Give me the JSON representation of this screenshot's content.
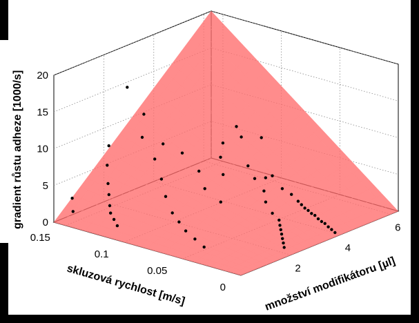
{
  "chart_data": {
    "type": "scatter",
    "subtype": "3d-scatter-with-fitted-plane",
    "title": "",
    "xlabel": "skluzová rychlost [m/s]",
    "ylabel": "množství modifikátoru  [µl]",
    "zlabel": "gradient růstu adheze [1000/s]",
    "x_ticks": [
      "0",
      "0.05",
      "0.1",
      "0.15"
    ],
    "y_ticks": [
      "2",
      "4",
      "6"
    ],
    "z_ticks": [
      "0",
      "5",
      "10",
      "15",
      "20"
    ],
    "xlim": [
      0,
      0.16
    ],
    "ylim": [
      0,
      6.3
    ],
    "zlim": [
      0,
      20
    ],
    "grid": true,
    "colors": {
      "surface": "#ff6b6b",
      "surface_edge": "#ff8d8d",
      "points": "#000000"
    },
    "surface": {
      "description_corners": [
        {
          "x": 0,
          "y": 0,
          "z": 0
        },
        {
          "x": 0.16,
          "y": 0,
          "z": 0
        },
        {
          "x": 0,
          "y": 6.3,
          "z": 0
        },
        {
          "x": 0.16,
          "y": 6.3,
          "z": 20
        }
      ]
    },
    "points": [
      {
        "x": 0.15,
        "y": 6.3,
        "z": 2.5
      },
      {
        "x": 0.13,
        "y": 6.1,
        "z": 4.5
      },
      {
        "x": 0.12,
        "y": 5.9,
        "z": 1.3
      },
      {
        "x": 0.11,
        "y": 5.7,
        "z": 0.3
      },
      {
        "x": 0.1,
        "y": 5.5,
        "z": 6.6
      },
      {
        "x": 0.08,
        "y": 5.4,
        "z": 0.7
      },
      {
        "x": 0.07,
        "y": 5.3,
        "z": 0.5
      },
      {
        "x": 0.06,
        "y": 5.1,
        "z": 0.3
      },
      {
        "x": 0.055,
        "y": 5.0,
        "z": 0.2
      },
      {
        "x": 0.05,
        "y": 4.9,
        "z": 0.1
      },
      {
        "x": 0.045,
        "y": 4.8,
        "z": 0.15
      },
      {
        "x": 0.04,
        "y": 4.7,
        "z": 0.1
      },
      {
        "x": 0.035,
        "y": 4.6,
        "z": 0.2
      },
      {
        "x": 0.03,
        "y": 4.5,
        "z": 0.1
      },
      {
        "x": 0.025,
        "y": 4.4,
        "z": 0.1
      },
      {
        "x": 0.02,
        "y": 4.3,
        "z": 0.2
      },
      {
        "x": 0.015,
        "y": 4.2,
        "z": 0.1
      },
      {
        "x": 0.01,
        "y": 4.1,
        "z": 0.1
      },
      {
        "x": 0.005,
        "y": 4.0,
        "z": 0.05
      },
      {
        "x": 0.08,
        "y": 5.0,
        "z": 3.0
      },
      {
        "x": 0.09,
        "y": 5.2,
        "z": 2.0
      },
      {
        "x": 0.1,
        "y": 4.5,
        "z": 9.5
      },
      {
        "x": 0.12,
        "y": 4.8,
        "z": 4.0
      },
      {
        "x": 0.07,
        "y": 4.2,
        "z": 2.5
      },
      {
        "x": 0.06,
        "y": 3.8,
        "z": 2.0
      },
      {
        "x": 0.05,
        "y": 3.6,
        "z": 1.2
      },
      {
        "x": 0.04,
        "y": 3.4,
        "z": 1.0
      },
      {
        "x": 0.035,
        "y": 3.2,
        "z": 0.8
      },
      {
        "x": 0.03,
        "y": 3.0,
        "z": 0.7
      },
      {
        "x": 0.025,
        "y": 2.8,
        "z": 0.6
      },
      {
        "x": 0.02,
        "y": 2.6,
        "z": 0.5
      },
      {
        "x": 0.015,
        "y": 2.4,
        "z": 0.4
      },
      {
        "x": 0.01,
        "y": 2.2,
        "z": 0.3
      },
      {
        "x": 0.09,
        "y": 3.5,
        "z": 4.8
      },
      {
        "x": 0.1,
        "y": 3.0,
        "z": 5.5
      },
      {
        "x": 0.11,
        "y": 2.8,
        "z": 7.8
      },
      {
        "x": 0.12,
        "y": 2.5,
        "z": 9.0
      },
      {
        "x": 0.13,
        "y": 2.2,
        "z": 13.0
      },
      {
        "x": 0.14,
        "y": 2.0,
        "z": 16.5
      },
      {
        "x": 0.125,
        "y": 1.9,
        "z": 10.5
      },
      {
        "x": 0.11,
        "y": 1.7,
        "z": 8.5
      },
      {
        "x": 0.1,
        "y": 1.5,
        "z": 6.5
      },
      {
        "x": 0.09,
        "y": 1.2,
        "z": 5.0
      },
      {
        "x": 0.08,
        "y": 1.0,
        "z": 3.5
      },
      {
        "x": 0.07,
        "y": 0.8,
        "z": 3.0
      },
      {
        "x": 0.06,
        "y": 0.6,
        "z": 2.5
      },
      {
        "x": 0.05,
        "y": 0.5,
        "z": 2.0
      },
      {
        "x": 0.04,
        "y": 0.4,
        "z": 1.5
      },
      {
        "x": 0.145,
        "y": 1.5,
        "z": 9.0
      },
      {
        "x": 0.14,
        "y": 1.2,
        "z": 7.0
      },
      {
        "x": 0.135,
        "y": 1.0,
        "z": 5.0
      },
      {
        "x": 0.13,
        "y": 0.8,
        "z": 4.0
      },
      {
        "x": 0.125,
        "y": 0.6,
        "z": 3.0
      },
      {
        "x": 0.12,
        "y": 0.4,
        "z": 2.5
      },
      {
        "x": 0.115,
        "y": 0.3,
        "z": 2.0
      },
      {
        "x": 0.11,
        "y": 0.2,
        "z": 1.5
      },
      {
        "x": 0.155,
        "y": 0.5,
        "z": 2.8
      },
      {
        "x": 0.15,
        "y": 0.3,
        "z": 1.5
      },
      {
        "x": 0.06,
        "y": 2.0,
        "z": 4.5
      },
      {
        "x": 0.08,
        "y": 2.3,
        "z": 5.0
      }
    ]
  }
}
